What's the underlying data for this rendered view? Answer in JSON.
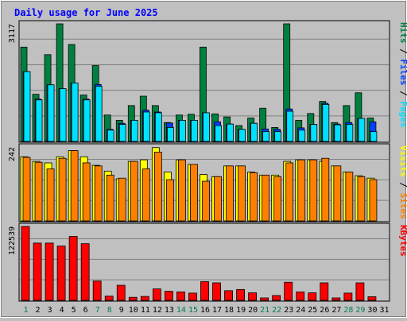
{
  "chart_data": {
    "type": "bar",
    "title": "Daily usage for June 2025",
    "categories": [
      "1",
      "2",
      "3",
      "4",
      "5",
      "6",
      "7",
      "8",
      "9",
      "10",
      "11",
      "12",
      "13",
      "14",
      "15",
      "16",
      "17",
      "18",
      "19",
      "20",
      "21",
      "22",
      "23",
      "24",
      "25",
      "26",
      "27",
      "28",
      "29",
      "30",
      "31"
    ],
    "weekend_days": [
      "1",
      "7",
      "8",
      "14",
      "15",
      "21",
      "22",
      "28",
      "29"
    ],
    "panels": [
      {
        "id": "hits_files_pages",
        "max_label": "3117",
        "ylim": [
          0,
          3117
        ],
        "side_label": [
          "Pages",
          "Files",
          "Hits"
        ],
        "series": [
          {
            "name": "Hits",
            "color": "#008040",
            "values": [
              2500,
              1250,
              2300,
              3117,
              2570,
              1230,
              2010,
              700,
              560,
              950,
              1200,
              950,
              500,
              700,
              720,
              2500,
              730,
              650,
              420,
              620,
              880,
              370,
              3117,
              560,
              740,
              1060,
              500,
              950,
              1290,
              620,
              0
            ]
          },
          {
            "name": "Files",
            "color": "#0040ff",
            "values": [
              1850,
              1120,
              1500,
              1400,
              1550,
              1120,
              1510,
              320,
              480,
              560,
              830,
              780,
              490,
              560,
              560,
              760,
              520,
              460,
              320,
              480,
              330,
              320,
              860,
              360,
              450,
              1010,
              460,
              500,
              610,
              520,
              0
            ]
          },
          {
            "name": "Pages",
            "color": "#00e0ff",
            "values": [
              1850,
              1100,
              1500,
              1400,
              1550,
              1100,
              1460,
              300,
              450,
              560,
              780,
              760,
              370,
              560,
              560,
              760,
              420,
              460,
              320,
              480,
              260,
              260,
              800,
              300,
              450,
              980,
              440,
              450,
              610,
              260,
              0
            ]
          }
        ]
      },
      {
        "id": "visits_sites",
        "max_label": "242",
        "ylim": [
          0,
          242
        ],
        "side_label": [
          "Sites",
          "Visits"
        ],
        "series": [
          {
            "name": "Visits",
            "color": "#ffff00",
            "values": [
              210,
              195,
              190,
              210,
              230,
              210,
              182,
              163,
              138,
              195,
              200,
              240,
              160,
              200,
              185,
              152,
              145,
              180,
              180,
              160,
              150,
              150,
              195,
              200,
              200,
              195,
              180,
              160,
              148,
              140,
              0
            ]
          },
          {
            "name": "Sites",
            "color": "#ff8000",
            "values": [
              208,
              192,
              170,
              205,
              230,
              190,
              180,
              150,
              140,
              195,
              170,
              225,
              135,
              200,
              185,
              130,
              145,
              180,
              180,
              158,
              150,
              145,
              190,
              200,
              200,
              205,
              180,
              160,
              145,
              135,
              0
            ]
          }
        ]
      },
      {
        "id": "kbytes",
        "max_label": "122539",
        "ylim": [
          0,
          122539
        ],
        "side_label": [
          "KBytes"
        ],
        "series": [
          {
            "name": "KBytes",
            "color": "#ff0000",
            "values": [
              122539,
              95000,
              95000,
              90000,
              106000,
              94000,
              32000,
              7000,
              25000,
              5000,
              6500,
              19000,
              15000,
              14000,
              12000,
              31000,
              29000,
              16000,
              18000,
              12500,
              4000,
              8000,
              30000,
              14000,
              12500,
              29000,
              4000,
              12000,
              29000,
              6000,
              0
            ]
          }
        ]
      }
    ]
  }
}
